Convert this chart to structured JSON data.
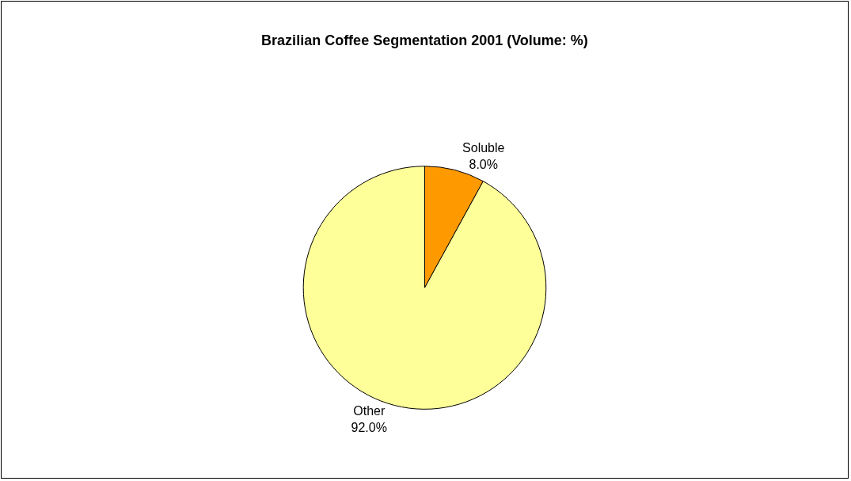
{
  "chart_data": {
    "type": "pie",
    "title": "Brazilian Coffee Segmentation 2001 (Volume: %)",
    "categories": [
      "Soluble",
      "Other"
    ],
    "values": [
      8,
      92
    ],
    "colors": [
      "#ff9900",
      "#ffff99"
    ],
    "value_labels": [
      "8.0%",
      "92.0%"
    ],
    "legend": false
  }
}
